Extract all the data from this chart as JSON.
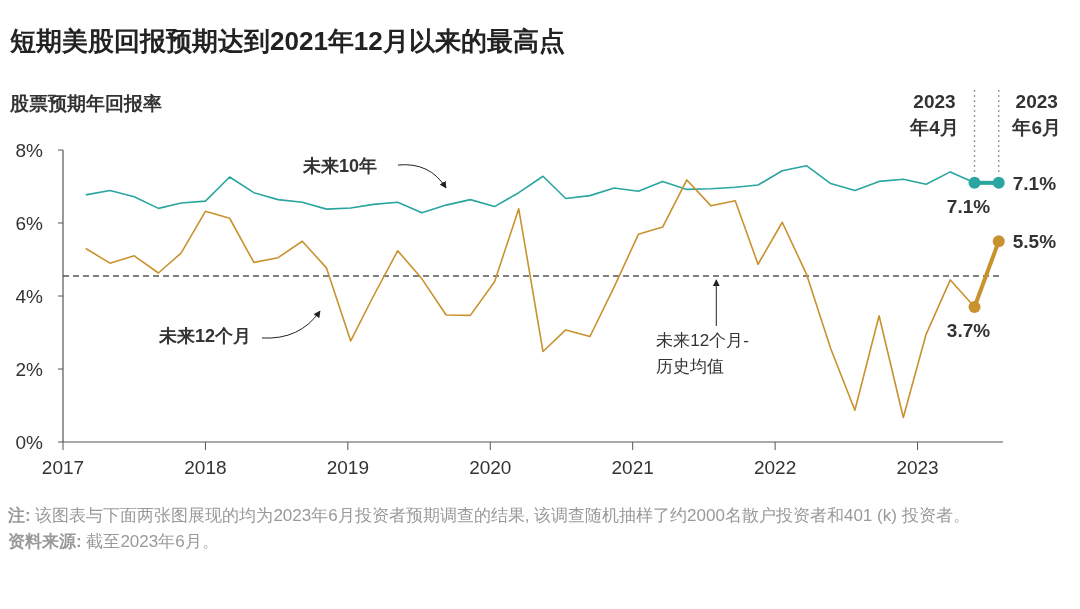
{
  "chart_data": {
    "type": "line",
    "title": "短期美股回报预期达到2021年12月以来的最高点",
    "ylabel": "股票预期年回报率",
    "x": [
      2017.16,
      2017.33,
      2017.5,
      2017.67,
      2017.83,
      2018.0,
      2018.17,
      2018.34,
      2018.51,
      2018.68,
      2018.85,
      2019.02,
      2019.18,
      2019.35,
      2019.52,
      2019.69,
      2019.86,
      2020.03,
      2020.2,
      2020.37,
      2020.53,
      2020.7,
      2020.87,
      2021.04,
      2021.21,
      2021.38,
      2021.55,
      2021.72,
      2021.88,
      2022.05,
      2022.22,
      2022.39,
      2022.56,
      2022.73,
      2022.9,
      2023.06,
      2023.23,
      2023.4,
      2023.57
    ],
    "series": [
      {
        "color": "#2aa5a0",
        "values": [
          6.77,
          6.89,
          6.72,
          6.4,
          6.55,
          6.6,
          7.26,
          6.83,
          6.64,
          6.57,
          6.38,
          6.41,
          6.51,
          6.57,
          6.28,
          6.49,
          6.64,
          6.45,
          6.83,
          7.28,
          6.67,
          6.75,
          6.96,
          6.87,
          7.14,
          6.92,
          6.94,
          6.98,
          7.04,
          7.43,
          7.57,
          7.08,
          6.89,
          7.14,
          7.2,
          7.06,
          7.4,
          7.1,
          7.1
        ],
        "value_labels": [
          null,
          null,
          null,
          null,
          null,
          null,
          null,
          null,
          null,
          null,
          null,
          null,
          null,
          null,
          null,
          null,
          null,
          null,
          null,
          null,
          null,
          null,
          null,
          null,
          null,
          null,
          null,
          null,
          null,
          null,
          null,
          null,
          null,
          null,
          null,
          null,
          null,
          "7.1%",
          "7.1%"
        ]
      },
      {
        "color": "#c8922e",
        "values": [
          5.3,
          4.9,
          5.1,
          4.63,
          5.18,
          6.32,
          6.13,
          4.92,
          5.05,
          5.5,
          4.77,
          2.77,
          4.0,
          5.24,
          4.47,
          3.48,
          3.47,
          4.39,
          6.39,
          2.48,
          3.07,
          2.89,
          4.25,
          5.69,
          5.89,
          7.18,
          6.47,
          6.61,
          4.87,
          6.02,
          4.6,
          2.56,
          0.87,
          3.46,
          0.67,
          2.95,
          4.44,
          3.7,
          5.5
        ],
        "value_labels": [
          null,
          null,
          null,
          null,
          null,
          null,
          null,
          null,
          null,
          null,
          null,
          null,
          null,
          null,
          null,
          null,
          null,
          null,
          null,
          null,
          null,
          null,
          null,
          null,
          null,
          null,
          null,
          null,
          null,
          null,
          null,
          null,
          null,
          null,
          null,
          null,
          null,
          "3.7%",
          "5.5%"
        ]
      }
    ],
    "xlim": [
      2017,
      2023.6
    ],
    "xticks": [
      2017,
      2018,
      2019,
      2020,
      2021,
      2022,
      2023
    ],
    "ylim": [
      0,
      8
    ],
    "yticks": [
      {
        "value": 0,
        "label": "0%"
      },
      {
        "value": 2,
        "label": "2%"
      },
      {
        "value": 4,
        "label": "4%"
      },
      {
        "value": 6,
        "label": "6%"
      },
      {
        "value": 8,
        "label": "8%"
      }
    ],
    "grid": false,
    "ref_lines": [
      {
        "axis": "y",
        "value": 4.55,
        "label": "未来12个月-\n历史均值",
        "line_style": "dashed",
        "color": "#555555"
      },
      {
        "axis": "x",
        "value": 2023.4,
        "label": "2023\n年4月",
        "line_style": "dotted",
        "color": "#999999"
      },
      {
        "axis": "x",
        "value": 2023.57,
        "label": "2023\n年6月",
        "line_style": "dotted",
        "color": "#999999"
      }
    ],
    "annotations": [
      "未来10年",
      "未来12个月",
      "注: 该图表与下面两张图展现的均为2023年6月投资者预期调查的结果, 该调查随机抽样了约2000名散户投资者和401 (k) 投资者。",
      "资料来源: 截至2023年6月。"
    ]
  }
}
